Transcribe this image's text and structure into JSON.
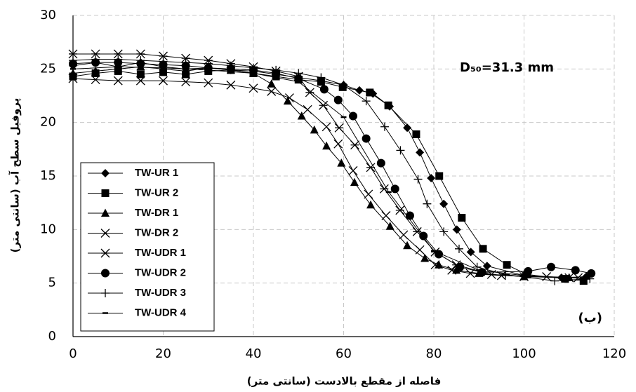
{
  "chart_data": {
    "type": "line",
    "x_label": "فاصله از مقطع بالادست (سانتی متر)",
    "y_label": "پروفیل سطح آب (سانتی متر)",
    "annotations": [
      "D₅₀=31.3 mm",
      "(ب)"
    ],
    "xlim": [
      0,
      120
    ],
    "xticks": [
      0,
      20,
      40,
      60,
      80,
      100,
      120
    ],
    "ylim": [
      0,
      30
    ],
    "yticks": [
      0,
      5,
      10,
      15,
      20,
      25,
      30
    ],
    "grid": true,
    "legend": "lower left",
    "series": [
      {
        "name": "TW-UR 1",
        "color": "#000000",
        "marker": "diamond",
        "x": [
          0,
          5,
          10,
          15,
          20,
          25,
          30,
          35,
          40,
          45,
          50,
          55,
          60,
          63.5,
          66.5,
          70.2,
          74.1,
          76.9,
          79.4,
          82.2,
          85.1,
          88.2,
          91.8,
          100,
          108.3,
          113.8
        ],
        "values": [
          25.3,
          25.6,
          25.2,
          25.6,
          25.2,
          25.0,
          25.1,
          24.9,
          24.8,
          24.5,
          24.2,
          23.9,
          23.5,
          23.0,
          22.7,
          21.5,
          19.5,
          17.2,
          14.8,
          12.4,
          10.0,
          7.9,
          6.6,
          5.7,
          5.5,
          5.6
        ]
      },
      {
        "name": "TW-UR 2",
        "color": "#000000",
        "marker": "square",
        "x": [
          0,
          5,
          10,
          15,
          20,
          25,
          30,
          35,
          40,
          45,
          50,
          55,
          59.8,
          65.8,
          69.9,
          76.1,
          81.2,
          86.2,
          90.9,
          96.2,
          100.7,
          109.1,
          113.2
        ],
        "values": [
          24.3,
          24.6,
          24.8,
          24.5,
          24.7,
          24.5,
          24.8,
          24.9,
          24.6,
          24.3,
          24.0,
          23.8,
          23.3,
          22.8,
          21.6,
          18.9,
          15.0,
          11.1,
          8.2,
          6.7,
          5.8,
          5.4,
          5.2
        ]
      },
      {
        "name": "TW-DR 1",
        "color": "#000000",
        "marker": "triangle",
        "x": [
          0,
          5,
          10,
          15,
          20,
          25,
          30,
          35,
          40,
          44,
          47.6,
          50.7,
          53.5,
          56.2,
          59.5,
          62.4,
          66,
          70.3,
          74.1,
          78,
          81.1,
          85,
          90,
          100,
          110
        ],
        "values": [
          24.6,
          24.8,
          25.0,
          25.2,
          25.0,
          24.8,
          25.1,
          24.9,
          24.6,
          23.6,
          22.0,
          20.6,
          19.3,
          17.8,
          16.2,
          14.4,
          12.3,
          10.3,
          8.5,
          7.3,
          6.7,
          6.2,
          5.9,
          5.6,
          5.5
        ]
      },
      {
        "name": "TW-DR 2",
        "color": "#000000",
        "marker": "x",
        "x": [
          0,
          5,
          10,
          15,
          20,
          25,
          30,
          35,
          40,
          44,
          48,
          52,
          56.2,
          58.8,
          62.1,
          65.5,
          69.4,
          73.3,
          76.9,
          80.3,
          84,
          88.1,
          95,
          105,
          112
        ],
        "values": [
          24.1,
          24.0,
          23.9,
          23.9,
          23.9,
          23.8,
          23.7,
          23.5,
          23.2,
          22.9,
          22.3,
          21.2,
          19.6,
          18.0,
          15.5,
          13.3,
          11.3,
          9.5,
          8.1,
          6.7,
          6.2,
          5.9,
          5.7,
          5.6,
          5.5
        ]
      },
      {
        "name": "TW-UDR 1",
        "color": "#000000",
        "marker": "asterisk",
        "x": [
          0,
          5,
          10,
          15,
          20,
          25,
          30,
          35,
          40,
          45,
          50,
          52.5,
          55.5,
          59,
          62.5,
          66,
          69,
          72.5,
          76.3,
          80.3,
          85,
          92.8,
          100,
          110
        ],
        "values": [
          26.4,
          26.4,
          26.4,
          26.4,
          26.2,
          26.0,
          25.8,
          25.5,
          25.2,
          24.8,
          24.3,
          22.8,
          21.6,
          19.5,
          17.9,
          15.8,
          13.8,
          11.8,
          9.8,
          7.9,
          6.7,
          5.8,
          5.6,
          5.5
        ]
      },
      {
        "name": "TW-UDR 2",
        "color": "#000000",
        "marker": "circle",
        "x": [
          0,
          5,
          10,
          15,
          20,
          25,
          30,
          35,
          40,
          45,
          50,
          55.7,
          58.8,
          62.1,
          65,
          68.3,
          71.4,
          74.7,
          77.7,
          81.1,
          85.8,
          90.7,
          100.9,
          106,
          111.4,
          114.9
        ],
        "values": [
          25.5,
          25.6,
          25.6,
          25.5,
          25.4,
          25.3,
          25.1,
          25.0,
          24.9,
          24.6,
          24.1,
          23.1,
          22.1,
          20.6,
          18.5,
          16.2,
          13.8,
          11.3,
          9.4,
          7.7,
          6.5,
          6.0,
          6.1,
          6.5,
          6.2,
          5.9
        ]
      },
      {
        "name": "TW-UDR 3",
        "color": "#000000",
        "marker": "plus",
        "x": [
          0,
          5,
          10,
          15,
          20,
          25,
          30,
          35,
          40,
          45,
          50,
          55,
          60,
          65,
          69.1,
          72.6,
          76.5,
          78.5,
          82.2,
          85.6,
          89.6,
          95.9,
          106.8,
          114.6
        ],
        "values": [
          25.8,
          25.9,
          25.9,
          25.8,
          25.7,
          25.6,
          25.5,
          25.3,
          25.1,
          24.9,
          24.6,
          24.2,
          23.5,
          22.0,
          19.6,
          17.4,
          14.7,
          12.4,
          9.8,
          8.2,
          6.5,
          5.8,
          5.2,
          5.4
        ]
      },
      {
        "name": "TW-UDR 4",
        "color": "#000000",
        "marker": "dash",
        "x": [
          0,
          10,
          20,
          30,
          40,
          50,
          60,
          70,
          80,
          90,
          100,
          110,
          114
        ],
        "values": [
          25.0,
          25.2,
          25.1,
          24.9,
          24.6,
          23.8,
          20.5,
          13.5,
          8.0,
          6.2,
          5.7,
          5.5,
          5.4
        ]
      }
    ]
  }
}
